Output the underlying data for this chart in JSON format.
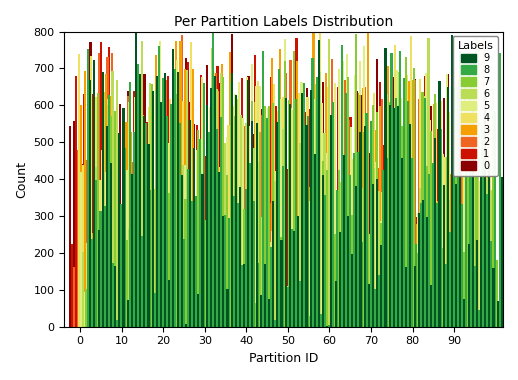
{
  "title": "Per Partition Labels Distribution",
  "xlabel": "Partition ID",
  "ylabel": "Count",
  "n_partitions": 100,
  "n_labels": 10,
  "seed": 2023,
  "label_colors": {
    "0": "#8B0000",
    "1": "#CC1100",
    "2": "#EE6622",
    "3": "#F5A000",
    "4": "#F0E060",
    "5": "#E0EE80",
    "6": "#BBDD55",
    "7": "#88CC33",
    "8": "#33AA44",
    "9": "#005522"
  },
  "label_names": [
    "0",
    "1",
    "2",
    "3",
    "4",
    "5",
    "6",
    "7",
    "8",
    "9"
  ],
  "ylim": [
    0,
    800
  ],
  "yticks": [
    0,
    100,
    200,
    300,
    400,
    500,
    600,
    700,
    800
  ],
  "xticks": [
    0,
    10,
    20,
    30,
    40,
    50,
    60,
    70,
    80,
    90
  ],
  "bar_width": 0.55,
  "figsize": [
    5.18,
    3.8
  ],
  "dpi": 100
}
